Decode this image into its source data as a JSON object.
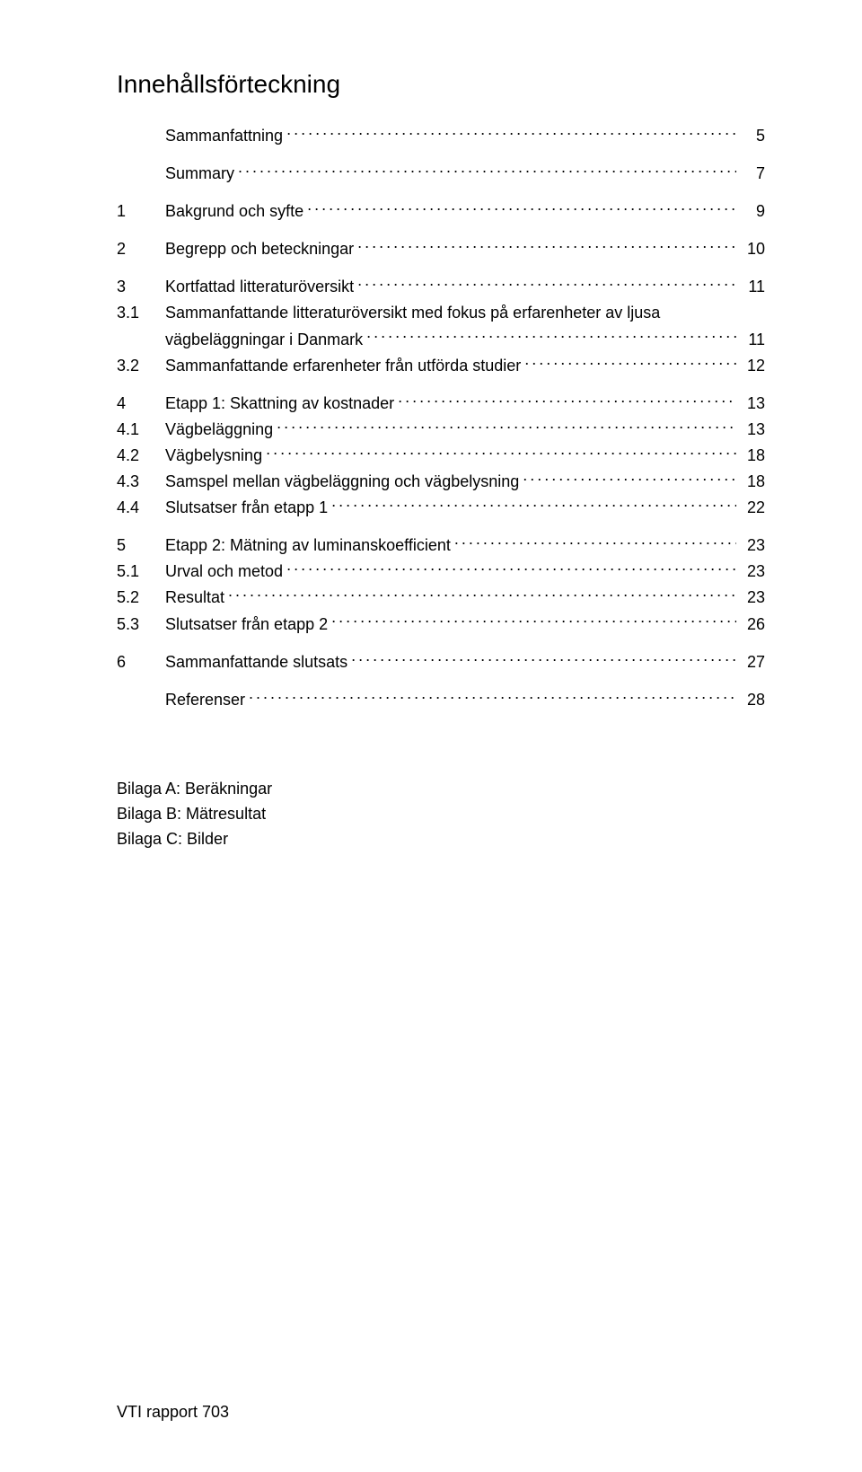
{
  "title": "Innehållsförteckning",
  "footer": "VTI rapport 703",
  "entries": [
    {
      "num": "",
      "label": "Sammanfattning",
      "page": "5",
      "gapAfter": "sm"
    },
    {
      "num": "",
      "label": "Summary",
      "page": "7",
      "gapAfter": "sm"
    },
    {
      "num": "1",
      "label": "Bakgrund och syfte",
      "page": "9",
      "gapAfter": "sm"
    },
    {
      "num": "2",
      "label": "Begrepp och beteckningar",
      "page": "10",
      "gapAfter": "sm"
    },
    {
      "num": "3",
      "label": "Kortfattad litteraturöversikt",
      "page": "11",
      "gapAfter": ""
    },
    {
      "num": "3.1",
      "label": "Sammanfattande litteraturöversikt med fokus på erfarenheter av ljusa",
      "page": "",
      "gapAfter": "",
      "noDots": true
    },
    {
      "num": "",
      "label": "vägbeläggningar i Danmark",
      "page": "11",
      "gapAfter": ""
    },
    {
      "num": "3.2",
      "label": "Sammanfattande erfarenheter från utförda studier",
      "page": "12",
      "gapAfter": "sm"
    },
    {
      "num": "4",
      "label": "Etapp 1: Skattning av kostnader",
      "page": "13",
      "gapAfter": ""
    },
    {
      "num": "4.1",
      "label": "Vägbeläggning",
      "page": "13",
      "gapAfter": ""
    },
    {
      "num": "4.2",
      "label": "Vägbelysning",
      "page": "18",
      "gapAfter": ""
    },
    {
      "num": "4.3",
      "label": "Samspel mellan vägbeläggning och vägbelysning",
      "page": "18",
      "gapAfter": ""
    },
    {
      "num": "4.4",
      "label": "Slutsatser från etapp 1",
      "page": "22",
      "gapAfter": "sm"
    },
    {
      "num": "5",
      "label": "Etapp 2: Mätning av luminanskoefficient",
      "page": "23",
      "gapAfter": ""
    },
    {
      "num": "5.1",
      "label": "Urval och metod",
      "page": "23",
      "gapAfter": ""
    },
    {
      "num": "5.2",
      "label": "Resultat",
      "page": "23",
      "gapAfter": ""
    },
    {
      "num": "5.3",
      "label": "Slutsatser från etapp 2",
      "page": "26",
      "gapAfter": "sm"
    },
    {
      "num": "6",
      "label": "Sammanfattande slutsats",
      "page": "27",
      "gapAfter": "sm"
    },
    {
      "num": "",
      "label": "Referenser",
      "page": "28",
      "gapAfter": "lg"
    }
  ],
  "appendix": [
    "Bilaga A: Beräkningar",
    "Bilaga B: Mätresultat",
    "Bilaga C: Bilder"
  ]
}
